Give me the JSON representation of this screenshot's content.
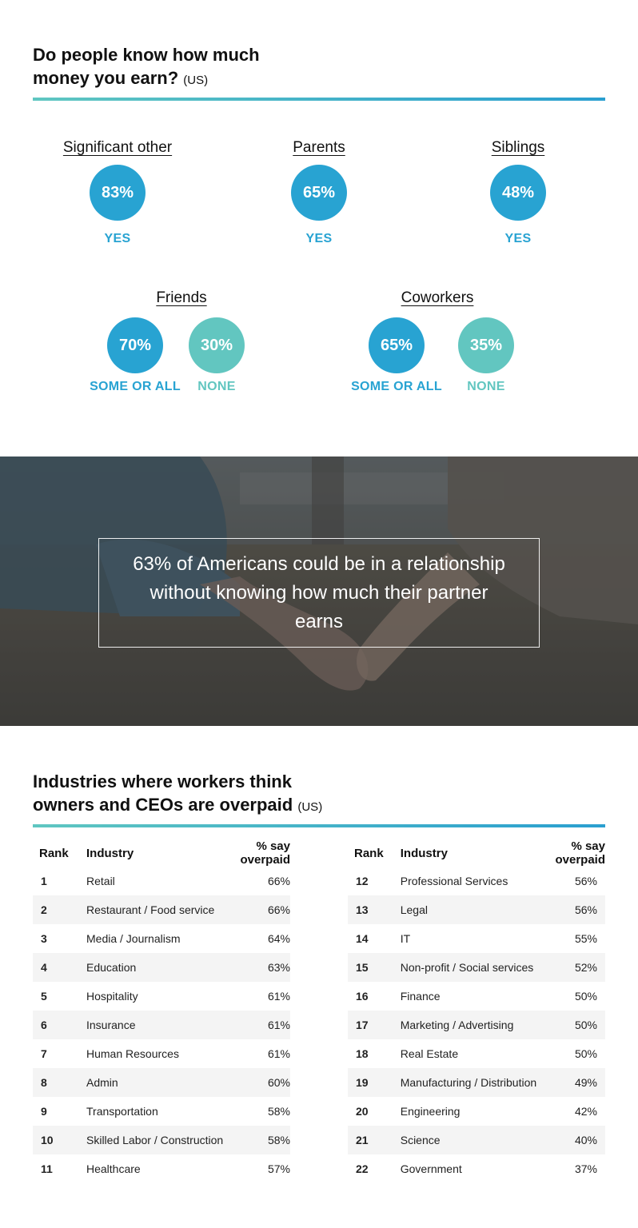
{
  "section1": {
    "title_line1": "Do people know how much",
    "title_line2": "money you earn?",
    "region": "(US)",
    "groups": [
      {
        "label": "Significant other",
        "values": [
          {
            "pct": "83%",
            "answer": "YES"
          }
        ]
      },
      {
        "label": "Parents",
        "values": [
          {
            "pct": "65%",
            "answer": "YES"
          }
        ]
      },
      {
        "label": "Siblings",
        "values": [
          {
            "pct": "48%",
            "answer": "YES"
          }
        ]
      },
      {
        "label": "Friends",
        "values": [
          {
            "pct": "70%",
            "answer": "SOME OR ALL"
          },
          {
            "pct": "30%",
            "answer": "NONE"
          }
        ]
      },
      {
        "label": "Coworkers",
        "values": [
          {
            "pct": "65%",
            "answer": "SOME OR ALL"
          },
          {
            "pct": "35%",
            "answer": "NONE"
          }
        ]
      }
    ],
    "colors": {
      "blue": "#28a3d2",
      "teal": "#62c6c0"
    }
  },
  "quote": {
    "text": "63% of Americans could be in a relationship without knowing how much their partner earns"
  },
  "section2": {
    "title_line1": "Industries where workers think",
    "title_line2": "owners and CEOs are overpaid",
    "region": "(US)",
    "headers": {
      "rank": "Rank",
      "industry": "Industry",
      "pct": "% say overpaid"
    },
    "left": [
      {
        "rank": "1",
        "industry": "Retail",
        "pct": "66%"
      },
      {
        "rank": "2",
        "industry": "Restaurant / Food service",
        "pct": "66%"
      },
      {
        "rank": "3",
        "industry": "Media / Journalism",
        "pct": "64%"
      },
      {
        "rank": "4",
        "industry": "Education",
        "pct": "63%"
      },
      {
        "rank": "5",
        "industry": "Hospitality",
        "pct": "61%"
      },
      {
        "rank": "6",
        "industry": "Insurance",
        "pct": "61%"
      },
      {
        "rank": "7",
        "industry": "Human Resources",
        "pct": "61%"
      },
      {
        "rank": "8",
        "industry": "Admin",
        "pct": "60%"
      },
      {
        "rank": "9",
        "industry": "Transportation",
        "pct": "58%"
      },
      {
        "rank": "10",
        "industry": "Skilled Labor / Construction",
        "pct": "58%"
      },
      {
        "rank": "11",
        "industry": "Healthcare",
        "pct": "57%"
      }
    ],
    "right": [
      {
        "rank": "12",
        "industry": "Professional Services",
        "pct": "56%"
      },
      {
        "rank": "13",
        "industry": "Legal",
        "pct": "56%"
      },
      {
        "rank": "14",
        "industry": "IT",
        "pct": "55%"
      },
      {
        "rank": "15",
        "industry": "Non-profit / Social services",
        "pct": "52%"
      },
      {
        "rank": "16",
        "industry": "Finance",
        "pct": "50%"
      },
      {
        "rank": "17",
        "industry": "Marketing / Advertising",
        "pct": "50%"
      },
      {
        "rank": "18",
        "industry": "Real Estate",
        "pct": "50%"
      },
      {
        "rank": "19",
        "industry": "Manufacturing / Distribution",
        "pct": "49%"
      },
      {
        "rank": "20",
        "industry": "Engineering",
        "pct": "42%"
      },
      {
        "rank": "21",
        "industry": "Science",
        "pct": "40%"
      },
      {
        "rank": "22",
        "industry": "Government",
        "pct": "37%"
      }
    ]
  }
}
